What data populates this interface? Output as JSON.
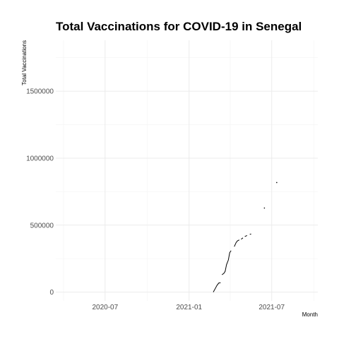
{
  "chart_data": {
    "type": "line",
    "title": "Total Vaccinations for COVID-19 in Senegal",
    "xlabel": "Month",
    "ylabel": "Total Vaccinations",
    "x_type": "date",
    "xlim": [
      "2020-03-15",
      "2021-10-10"
    ],
    "ylim": [
      -65000,
      1880000
    ],
    "x_ticks": [
      {
        "value": "2020-07-01",
        "label": "2020-07"
      },
      {
        "value": "2021-01-01",
        "label": "2021-01"
      },
      {
        "value": "2021-07-01",
        "label": "2021-07"
      }
    ],
    "x_minor": [
      "2020-04-01",
      "2020-10-01",
      "2021-04-01",
      "2021-10-01"
    ],
    "y_ticks": [
      {
        "value": 0,
        "label": "0"
      },
      {
        "value": 500000,
        "label": "500000"
      },
      {
        "value": 1000000,
        "label": "1000000"
      },
      {
        "value": 1500000,
        "label": "1500000"
      }
    ],
    "y_minor": [
      250000,
      750000,
      1250000,
      1750000
    ],
    "grid": true,
    "series": [
      {
        "segments": [
          [
            [
              "2021-02-23",
              0
            ],
            [
              "2021-02-27",
              25000
            ],
            [
              "2021-03-03",
              50000
            ],
            [
              "2021-03-07",
              68000
            ],
            [
              "2021-03-11",
              70000
            ]
          ],
          [
            [
              "2021-03-14",
              130000
            ],
            [
              "2021-03-18",
              140000
            ],
            [
              "2021-03-21",
              155000
            ],
            [
              "2021-03-24",
              205000
            ],
            [
              "2021-03-28",
              240000
            ],
            [
              "2021-03-31",
              295000
            ],
            [
              "2021-04-03",
              310000
            ]
          ],
          [
            [
              "2021-04-10",
              340000
            ],
            [
              "2021-04-14",
              370000
            ],
            [
              "2021-04-17",
              383000
            ],
            [
              "2021-04-21",
              390000
            ]
          ],
          [
            [
              "2021-04-25",
              395000
            ],
            [
              "2021-04-29",
              405000
            ]
          ],
          [
            [
              "2021-05-03",
              415000
            ],
            [
              "2021-05-08",
              423000
            ]
          ],
          [
            [
              "2021-05-14",
              432000
            ],
            [
              "2021-05-17",
              434000
            ]
          ]
        ],
        "points": [
          [
            "2021-06-15",
            628000
          ],
          [
            "2021-07-12",
            818000
          ]
        ]
      }
    ]
  }
}
